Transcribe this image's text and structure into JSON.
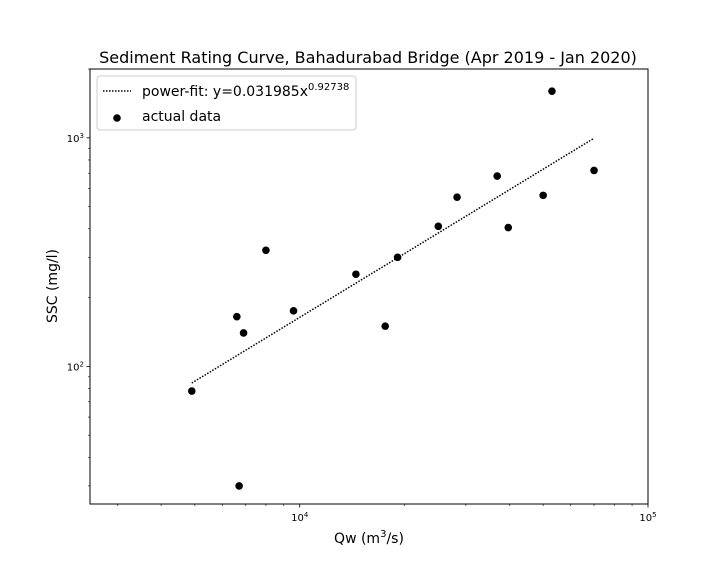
{
  "chart_data": {
    "type": "scatter",
    "title": "Sediment Rating Curve, Bahadurabad Bridge (Apr 2019 - Jan 2020)",
    "xlabel": {
      "base": "Qw (m",
      "sup": "3",
      "tail": "/s)"
    },
    "ylabel": "SSC (mg/l)",
    "xscale": "log",
    "yscale": "log",
    "xlim": [
      2500,
      100000
    ],
    "ylim": [
      25,
      2000
    ],
    "x_ticks": [
      {
        "value": 10000,
        "base": "10",
        "exp": "4"
      },
      {
        "value": 100000,
        "base": "10",
        "exp": "5"
      }
    ],
    "y_ticks": [
      {
        "value": 100,
        "base": "10",
        "exp": "2"
      },
      {
        "value": 1000,
        "base": "10",
        "exp": "3"
      }
    ],
    "grid": false,
    "legend_position": "top-left",
    "series": [
      {
        "name": "power-fit: y=0.031985x",
        "name_sup": "0.92738",
        "kind": "line",
        "style": "dotted",
        "color": "#000000",
        "coefficient": 0.031985,
        "exponent": 0.92738,
        "x_range": [
          4900,
          70000
        ]
      },
      {
        "name": "actual data",
        "kind": "scatter",
        "color": "#000000",
        "points": [
          {
            "x": 4900,
            "y": 78
          },
          {
            "x": 6600,
            "y": 165
          },
          {
            "x": 6700,
            "y": 30
          },
          {
            "x": 6900,
            "y": 140
          },
          {
            "x": 8000,
            "y": 322
          },
          {
            "x": 9600,
            "y": 175
          },
          {
            "x": 14500,
            "y": 253
          },
          {
            "x": 17600,
            "y": 150
          },
          {
            "x": 19100,
            "y": 300
          },
          {
            "x": 25000,
            "y": 410
          },
          {
            "x": 28300,
            "y": 550
          },
          {
            "x": 36900,
            "y": 680
          },
          {
            "x": 39700,
            "y": 405
          },
          {
            "x": 50000,
            "y": 560
          },
          {
            "x": 53000,
            "y": 1600
          },
          {
            "x": 70000,
            "y": 720
          }
        ]
      }
    ]
  }
}
